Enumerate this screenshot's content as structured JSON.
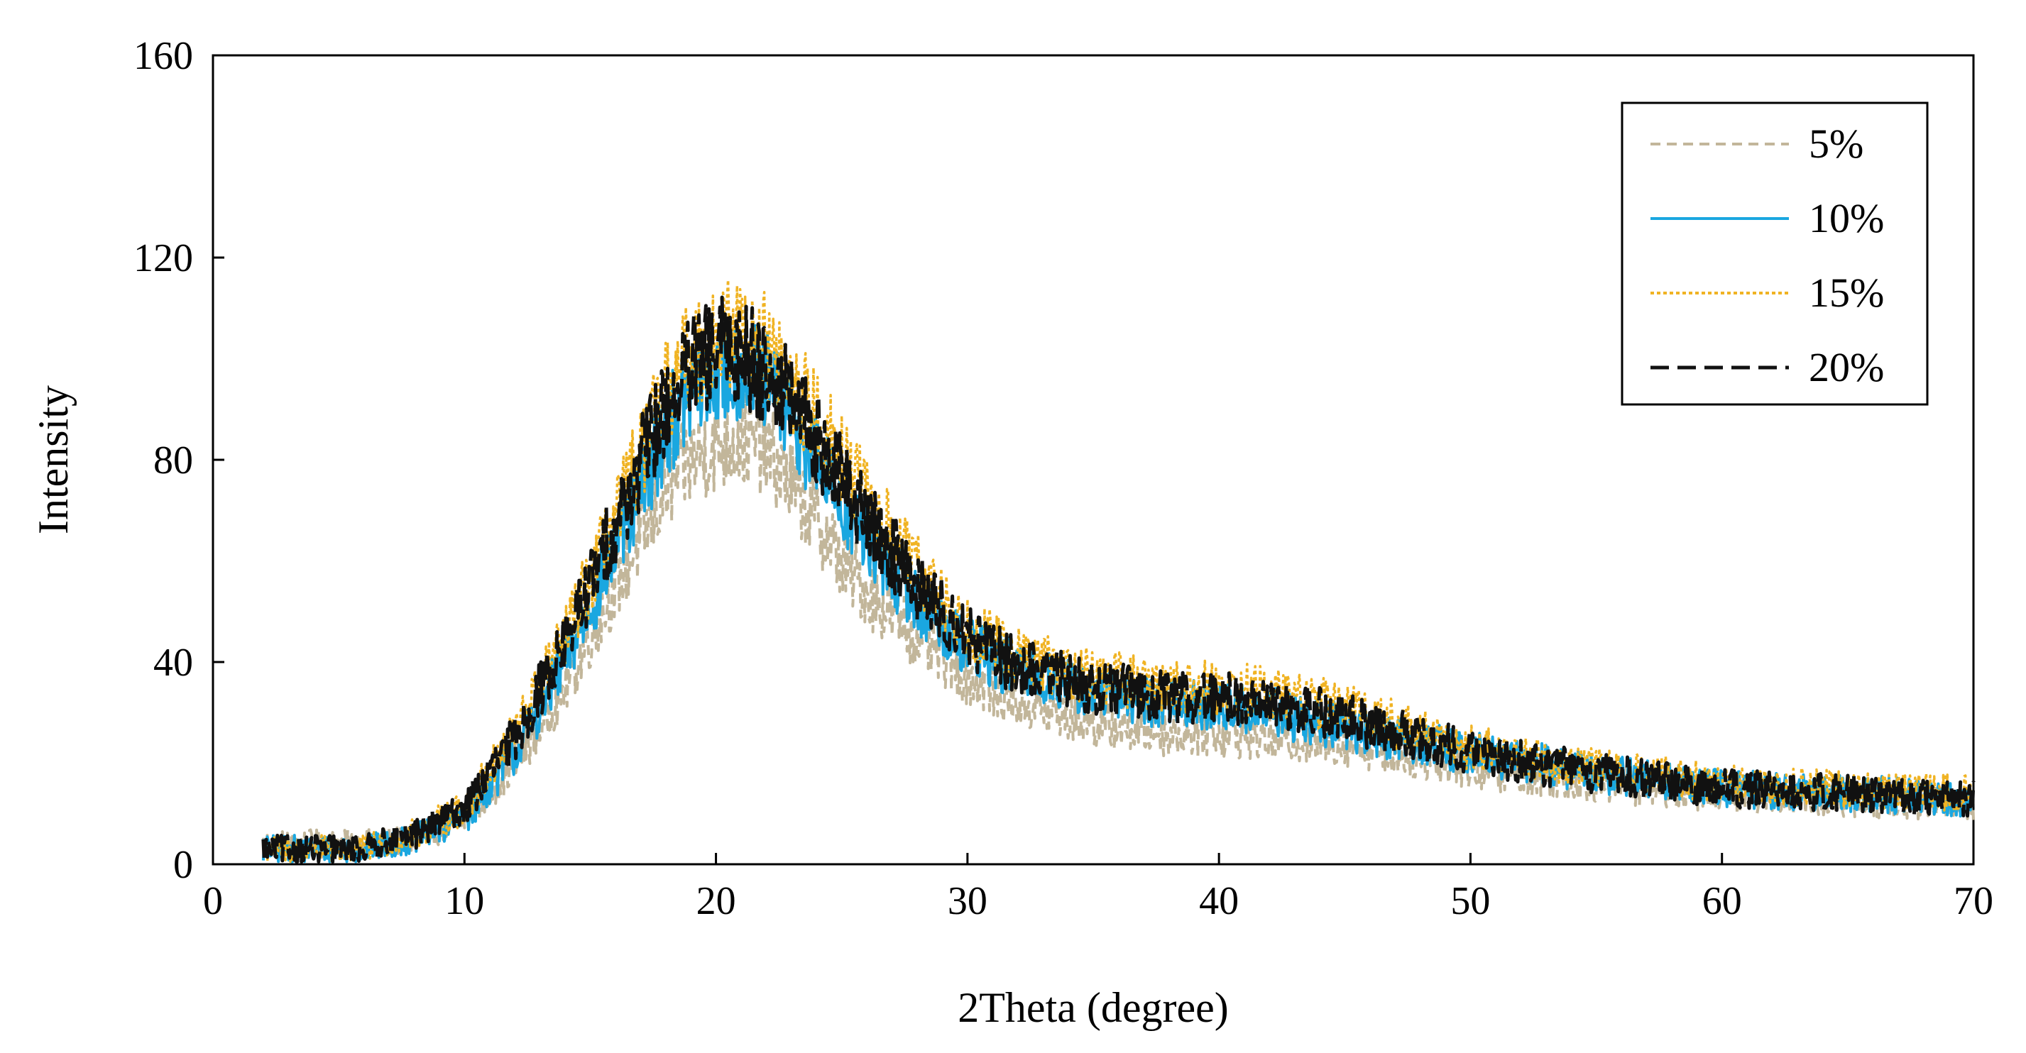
{
  "chart_data": {
    "type": "line",
    "title": "",
    "xlabel": "2Theta (degree)",
    "ylabel": "Intensity",
    "xlim": [
      0,
      70
    ],
    "ylim": [
      0,
      160
    ],
    "xticks": [
      0,
      10,
      20,
      30,
      40,
      50,
      60,
      70
    ],
    "yticks": [
      0,
      40,
      80,
      120,
      160
    ],
    "grid": false,
    "legend_position": "top-right",
    "x": [
      2,
      4,
      6,
      8,
      10,
      12,
      14,
      16,
      17,
      18,
      19,
      20,
      21,
      22,
      23,
      24,
      25,
      26,
      28,
      30,
      32,
      35,
      38,
      40,
      42,
      45,
      48,
      50,
      55,
      60,
      65,
      70
    ],
    "series": [
      {
        "name": "5%",
        "color": "#c2b69a",
        "dash": "dashed",
        "values": [
          4,
          4,
          4,
          5,
          9,
          20,
          35,
          55,
          64,
          74,
          80,
          83,
          84,
          82,
          75,
          68,
          60,
          54,
          45,
          37,
          32,
          28,
          26,
          26,
          25,
          24,
          21,
          19,
          16,
          14,
          13,
          12
        ]
      },
      {
        "name": "10%",
        "color": "#1aa7e0",
        "dash": "solid",
        "values": [
          3,
          3,
          3,
          5,
          9,
          22,
          40,
          62,
          74,
          86,
          93,
          97,
          98,
          95,
          88,
          80,
          72,
          64,
          52,
          43,
          38,
          34,
          32,
          31,
          30,
          27,
          24,
          22,
          18,
          15,
          14,
          13
        ]
      },
      {
        "name": "15%",
        "color": "#f0b323",
        "dash": "dotted",
        "values": [
          3,
          3,
          3,
          6,
          11,
          26,
          45,
          68,
          81,
          93,
          101,
          104,
          106,
          102,
          95,
          88,
          80,
          72,
          58,
          47,
          41,
          37,
          35,
          35,
          34,
          31,
          26,
          23,
          19,
          16,
          15,
          14
        ]
      },
      {
        "name": "20%",
        "color": "#111111",
        "dash": "longdash",
        "values": [
          3,
          3,
          3,
          6,
          11,
          25,
          44,
          67,
          79,
          91,
          98,
          101,
          102,
          98,
          91,
          84,
          76,
          68,
          55,
          45,
          39,
          35,
          33,
          33,
          32,
          29,
          25,
          22,
          18,
          15,
          14,
          13
        ]
      }
    ]
  }
}
